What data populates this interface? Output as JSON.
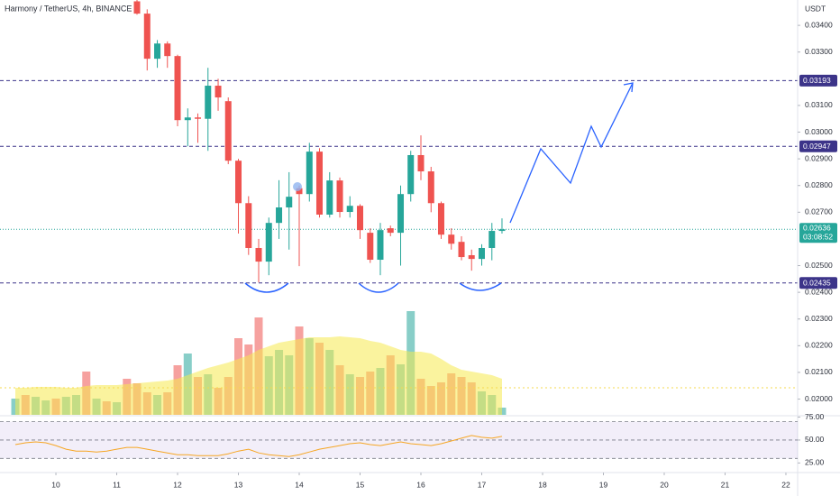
{
  "chart_data": {
    "type": "candlestick",
    "title": "Harmony / TetherUS, 4h, BINANCE",
    "currency": "USDT",
    "x": [
      11.333,
      11.5,
      11.667,
      11.833,
      12,
      12.167,
      12.333,
      12.5,
      12.667,
      12.833,
      13,
      13.167,
      13.333,
      13.5,
      13.667,
      13.833,
      14,
      14.167,
      14.333,
      14.5,
      14.667,
      14.833,
      15,
      15.167,
      15.333,
      15.5,
      15.667,
      15.833,
      16,
      16.167,
      16.333,
      16.5,
      16.667,
      16.833,
      17,
      17.167,
      17.333
    ],
    "open": [
      0.0349,
      0.03444,
      0.03275,
      0.03332,
      0.03285,
      0.03045,
      0.03055,
      0.0305,
      0.03174,
      0.03116,
      0.02893,
      0.02734,
      0.02566,
      0.02515,
      0.0266,
      0.02718,
      0.0279,
      0.02768,
      0.02927,
      0.02691,
      0.02819,
      0.02701,
      0.02724,
      0.02623,
      0.02522,
      0.0264,
      0.02623,
      0.02768,
      0.02914,
      0.02853,
      0.02734,
      0.02616,
      0.02589,
      0.02539,
      0.02525,
      0.02566,
      0.0263
    ],
    "high": [
      0.03495,
      0.0346,
      0.03345,
      0.0334,
      0.0329,
      0.03089,
      0.0307,
      0.03241,
      0.032,
      0.0313,
      0.029,
      0.0276,
      0.026,
      0.0268,
      0.0282,
      0.0285,
      0.028,
      0.0296,
      0.0294,
      0.0285,
      0.0283,
      0.0276,
      0.0273,
      0.0264,
      0.0266,
      0.0265,
      0.028,
      0.0293,
      0.02988,
      0.0287,
      0.0274,
      0.0264,
      0.0261,
      0.0256,
      0.0258,
      0.0266,
      0.02677
    ],
    "low": [
      0.0344,
      0.03231,
      0.03241,
      0.03241,
      0.03022,
      0.02947,
      0.0296,
      0.0293,
      0.0308,
      0.0288,
      0.0262,
      0.0254,
      0.02437,
      0.02464,
      0.026,
      0.0256,
      0.02498,
      0.0274,
      0.0268,
      0.0268,
      0.0268,
      0.0268,
      0.026,
      0.0251,
      0.02464,
      0.0261,
      0.025,
      0.0274,
      0.0282,
      0.027,
      0.026,
      0.0256,
      0.0252,
      0.02481,
      0.025,
      0.0252,
      0.0262
    ],
    "close": [
      0.03444,
      0.03275,
      0.03332,
      0.03285,
      0.03045,
      0.03055,
      0.0305,
      0.03174,
      0.0313,
      0.02893,
      0.02734,
      0.02566,
      0.02515,
      0.0266,
      0.02718,
      0.02758,
      0.02768,
      0.02927,
      0.02691,
      0.02819,
      0.02701,
      0.02724,
      0.02633,
      0.02522,
      0.02633,
      0.02623,
      0.02768,
      0.02914,
      0.02853,
      0.02734,
      0.02616,
      0.02582,
      0.02532,
      0.02525,
      0.02566,
      0.0263,
      0.02636
    ],
    "up_color": "#26a69a",
    "down_color": "#ef5350",
    "xlim": [
      9.081,
      22.193
    ],
    "xticks": [
      10,
      11,
      12,
      13,
      14,
      15,
      16,
      17,
      18,
      19,
      20,
      21,
      22
    ],
    "ylim": [
      0.01941,
      0.03495
    ],
    "yticks": [
      {
        "value": 0.034,
        "label": "0.03400"
      },
      {
        "value": 0.033,
        "label": "0.03300"
      },
      {
        "value": 0.031,
        "label": "0.03100"
      },
      {
        "value": 0.03,
        "label": "0.03000"
      },
      {
        "value": 0.029,
        "label": "0.02900"
      },
      {
        "value": 0.028,
        "label": "0.02800"
      },
      {
        "value": 0.027,
        "label": "0.02700"
      },
      {
        "value": 0.025,
        "label": "0.02500"
      },
      {
        "value": 0.024,
        "label": "0.02400"
      },
      {
        "value": 0.023,
        "label": "0.02300"
      },
      {
        "value": 0.022,
        "label": "0.02200"
      },
      {
        "value": 0.021,
        "label": "0.02100"
      },
      {
        "value": 0.02,
        "label": "0.02000"
      }
    ],
    "grid": false,
    "levels": [
      {
        "value": 0.03193,
        "label": "0.03193"
      },
      {
        "value": 0.02947,
        "label": "0.02947"
      },
      {
        "value": 0.02435,
        "label": "0.02435"
      }
    ],
    "level_color": "#3c3489",
    "last_price": {
      "value": 0.02636,
      "label": "0.02636",
      "countdown": "03:08:52"
    },
    "volume": {
      "x": [
        9.333,
        9.5,
        9.667,
        9.833,
        10,
        10.167,
        10.333,
        10.5,
        10.667,
        10.833,
        11,
        11.167,
        11.333,
        11.5,
        11.667,
        11.833,
        12,
        12.167,
        12.333,
        12.5,
        12.667,
        12.833,
        13,
        13.167,
        13.333,
        13.5,
        13.667,
        13.833,
        14,
        14.167,
        14.333,
        14.5,
        14.667,
        14.833,
        15,
        15.167,
        15.333,
        15.5,
        15.667,
        15.833,
        16,
        16.167,
        16.333,
        16.5,
        16.667,
        16.833,
        17,
        17.167,
        17.333
      ],
      "values": [
        18,
        22,
        20,
        16,
        18,
        20,
        22,
        48,
        18,
        15,
        14,
        40,
        35,
        25,
        22,
        25,
        55,
        68,
        42,
        45,
        30,
        42,
        85,
        78,
        108,
        65,
        72,
        66,
        98,
        85,
        80,
        72,
        55,
        45,
        42,
        48,
        52,
        66,
        56,
        115,
        40,
        32,
        36,
        46,
        42,
        36,
        26,
        22,
        8
      ],
      "up": [
        1,
        0,
        1,
        1,
        0,
        1,
        1,
        0,
        1,
        0,
        1,
        0,
        0,
        0,
        1,
        0,
        0,
        1,
        0,
        1,
        0,
        0,
        0,
        0,
        0,
        1,
        1,
        1,
        0,
        1,
        0,
        1,
        0,
        1,
        0,
        0,
        1,
        0,
        1,
        1,
        0,
        0,
        0,
        0,
        0,
        0,
        1,
        1,
        1
      ],
      "ma": [
        30,
        30,
        31,
        31,
        31,
        30,
        30,
        32,
        33,
        33,
        33,
        34,
        35,
        36,
        37,
        38,
        40,
        44,
        48,
        52,
        55,
        58,
        62,
        66,
        72,
        76,
        80,
        82,
        84,
        86,
        86,
        86,
        87,
        86,
        85,
        82,
        80,
        76,
        72,
        70,
        70,
        68,
        62,
        55,
        50,
        48,
        46,
        44,
        40
      ],
      "ma_color": "#f5e94f",
      "vlim": [
        0,
        130
      ]
    },
    "rsi": {
      "values": [
        45,
        47,
        48,
        47,
        44,
        40,
        38,
        38,
        37,
        38,
        40,
        42,
        42,
        40,
        38,
        36,
        34,
        34,
        33,
        33,
        33,
        35,
        38,
        40,
        36,
        34,
        33,
        32,
        34,
        37,
        40,
        42,
        44,
        46,
        47,
        45,
        44,
        46,
        48,
        46,
        45,
        44,
        46,
        49,
        52,
        55,
        53,
        52,
        54
      ],
      "color": "#f6a623",
      "lim": [
        18.5,
        75.5
      ],
      "ticks": [
        {
          "value": 75,
          "label": "75.00"
        },
        {
          "value": 50,
          "label": "50.00"
        },
        {
          "value": 25,
          "label": "25.00"
        }
      ],
      "bands": [
        70,
        50,
        30
      ]
    }
  }
}
